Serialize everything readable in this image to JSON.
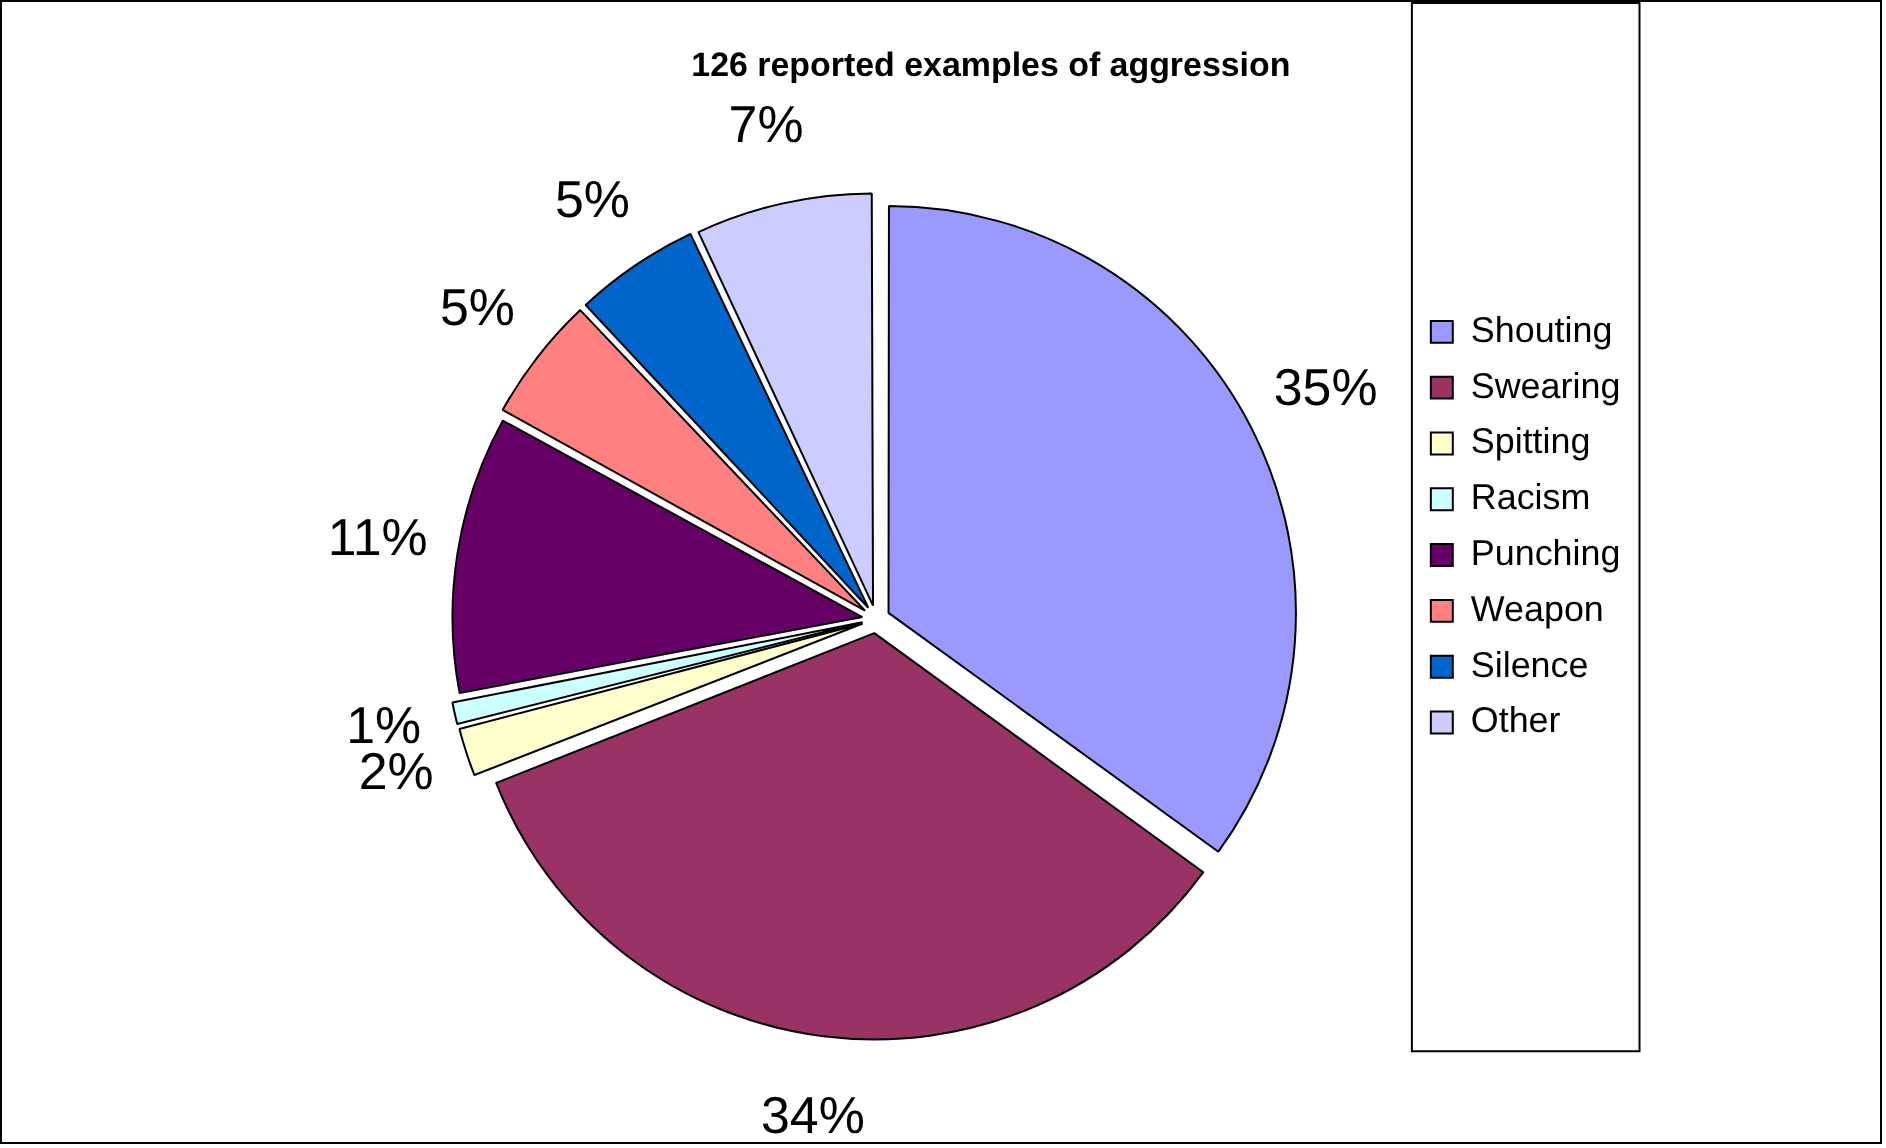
{
  "chart_data": {
    "type": "pie",
    "title": "126 reported examples of aggression",
    "categories": [
      "Shouting",
      "Swearing",
      "Spitting",
      "Racism",
      "Punching",
      "Weapon",
      "Silence",
      "Other"
    ],
    "values": [
      35,
      34,
      2,
      1,
      11,
      5,
      5,
      7
    ],
    "value_labels": [
      "35%",
      "34%",
      "2%",
      "1%",
      "11%",
      "5%",
      "5%",
      "7%"
    ],
    "colors": [
      "#9999ff",
      "#993366",
      "#ffffcc",
      "#ccffff",
      "#660066",
      "#ff8080",
      "#0066cc",
      "#ccccff"
    ],
    "legend": "right"
  }
}
